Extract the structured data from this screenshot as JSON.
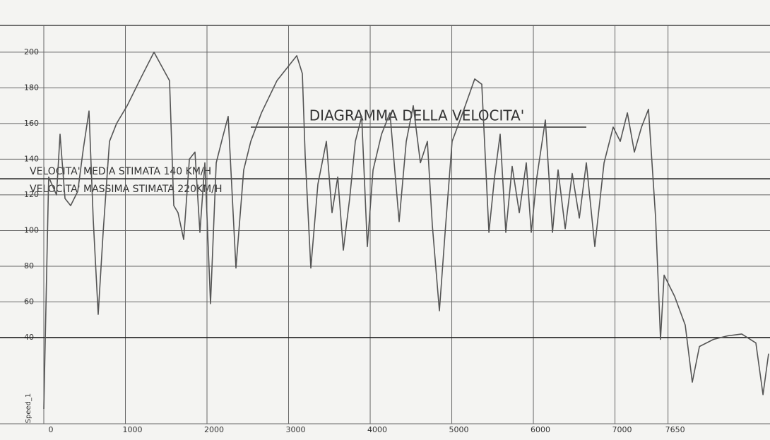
{
  "chart_data": {
    "type": "line",
    "title": "DIAGRAMMA DELLA VELOCITA'",
    "annotations": [
      "VELOCITA' MEDIA STIMATA 140 KM/H",
      "VELOCITA' MASSIMA STIMATA 220KM/H"
    ],
    "y_label": "Speed_1",
    "x": [
      0,
      60,
      156,
      199,
      260,
      329,
      416,
      485,
      554,
      606,
      667,
      727,
      805,
      892,
      1022,
      1195,
      1351,
      1541,
      1593,
      1645,
      1714,
      1784,
      1853,
      1913,
      1974,
      2043,
      2113,
      2190,
      2260,
      2355,
      2450,
      2537,
      2667,
      2857,
      3100,
      3169,
      3203,
      3273,
      3359,
      3463,
      3532,
      3602,
      3671,
      3749,
      3818,
      3896,
      3965,
      4035,
      4139,
      4242,
      4355,
      4442,
      4528,
      4615,
      4701,
      4762,
      4848,
      4918,
      5004,
      5134,
      5281,
      5368,
      5455,
      5524,
      5593,
      5662,
      5740,
      5827,
      5913,
      5974,
      6043,
      6147,
      6234,
      6303,
      6390,
      6476,
      6563,
      6649,
      6753,
      6866,
      6978,
      7065,
      7152,
      7238,
      7325,
      7411,
      7498,
      7558,
      7602,
      7732,
      7861,
      7948,
      8035,
      8208,
      8381,
      8554,
      8727,
      8814,
      8883
    ],
    "series": [
      {
        "name": "Speed_1",
        "color": "#555555",
        "values": [
          0,
          130,
          120,
          154,
          118,
          114,
          122,
          146,
          167,
          106,
          53,
          99,
          150,
          160,
          170,
          186,
          200,
          184,
          114,
          110,
          95,
          140,
          144,
          99,
          138,
          59,
          138,
          152,
          164,
          79,
          134,
          150,
          166,
          184,
          198,
          188,
          142,
          79,
          126,
          150,
          110,
          130,
          89,
          118,
          150,
          164,
          91,
          134,
          154,
          166,
          105,
          150,
          170,
          138,
          150,
          103,
          55,
          99,
          150,
          166,
          185,
          182,
          99,
          130,
          154,
          99,
          136,
          110,
          138,
          99,
          130,
          162,
          99,
          134,
          101,
          132,
          107,
          138,
          91,
          138,
          158,
          150,
          166,
          144,
          158,
          168,
          107,
          39,
          75,
          63,
          47,
          15,
          35,
          39,
          41,
          42,
          37,
          8,
          31
        ]
      }
    ],
    "xlim": [
      0,
      8900
    ],
    "ylim": [
      0,
      215
    ],
    "xticks": [
      0,
      1000,
      2000,
      3000,
      4000,
      5000,
      6000,
      7000,
      7650
    ],
    "yticks": [
      40,
      60,
      80,
      100,
      120,
      140,
      160,
      180,
      200
    ],
    "reference_lines": [
      40,
      129
    ],
    "grid": true
  }
}
